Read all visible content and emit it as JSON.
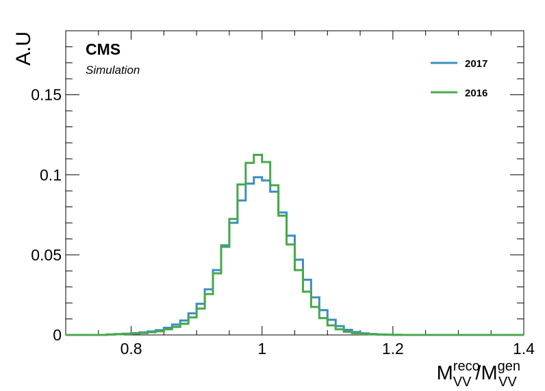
{
  "chart_data": {
    "type": "line",
    "style": "step-histogram",
    "ylabel": "A.U",
    "xlabel_parts": {
      "base": "M",
      "sup1": "reco",
      "sub1": "VV",
      "sep": "/",
      "base2": "M",
      "sup2": "gen",
      "sub2": "VV"
    },
    "xlim": [
      0.7,
      1.4
    ],
    "ylim": [
      0,
      0.19
    ],
    "x_ticks": [
      "0.8",
      "1",
      "1.2",
      "1.4"
    ],
    "y_ticks": [
      "0",
      "0.05",
      "0.1",
      "0.15"
    ],
    "x_tick_values": [
      0.8,
      1.0,
      1.2,
      1.4
    ],
    "y_tick_values": [
      0,
      0.05,
      0.1,
      0.15
    ],
    "grid": false,
    "legend_position": "top-right",
    "bin_edges_start": 0.7,
    "bin_width": 0.0125,
    "series": [
      {
        "name": "2017",
        "color": "#3c8dc3",
        "values": [
          0.0,
          0.0,
          0.0,
          0.0,
          0.0,
          0.0003,
          0.0006,
          0.0008,
          0.0012,
          0.0016,
          0.0022,
          0.003,
          0.0045,
          0.0065,
          0.009,
          0.0135,
          0.0195,
          0.0285,
          0.0405,
          0.056,
          0.07,
          0.084,
          0.0945,
          0.0985,
          0.0965,
          0.0895,
          0.0765,
          0.062,
          0.047,
          0.0345,
          0.0235,
          0.0155,
          0.0095,
          0.0055,
          0.0032,
          0.0018,
          0.001,
          0.0006,
          0.0003,
          0.0002,
          0.0001,
          0.0,
          0.0,
          0.0,
          0.0,
          0.0,
          0.0,
          0.0,
          0.0,
          0.0,
          0.0,
          0.0,
          0.0,
          0.0,
          0.0,
          0.0
        ]
      },
      {
        "name": "2016",
        "color": "#47a84b",
        "values": [
          0.0,
          0.0,
          0.0,
          0.0,
          0.0,
          0.0002,
          0.0004,
          0.0006,
          0.0009,
          0.0012,
          0.0017,
          0.0023,
          0.0035,
          0.005,
          0.007,
          0.011,
          0.0165,
          0.0255,
          0.0385,
          0.055,
          0.0725,
          0.094,
          0.1075,
          0.1125,
          0.108,
          0.0935,
          0.0745,
          0.0565,
          0.0405,
          0.027,
          0.0175,
          0.0105,
          0.006,
          0.0035,
          0.002,
          0.0011,
          0.0006,
          0.0003,
          0.0002,
          0.0001,
          0.0,
          0.0,
          0.0,
          0.0,
          0.0,
          0.0,
          0.0,
          0.0,
          0.0,
          0.0,
          0.0,
          0.0,
          0.0,
          0.0,
          0.0,
          0.0
        ]
      }
    ]
  },
  "labels": {
    "cms": "CMS",
    "simulation": "Simulation"
  }
}
